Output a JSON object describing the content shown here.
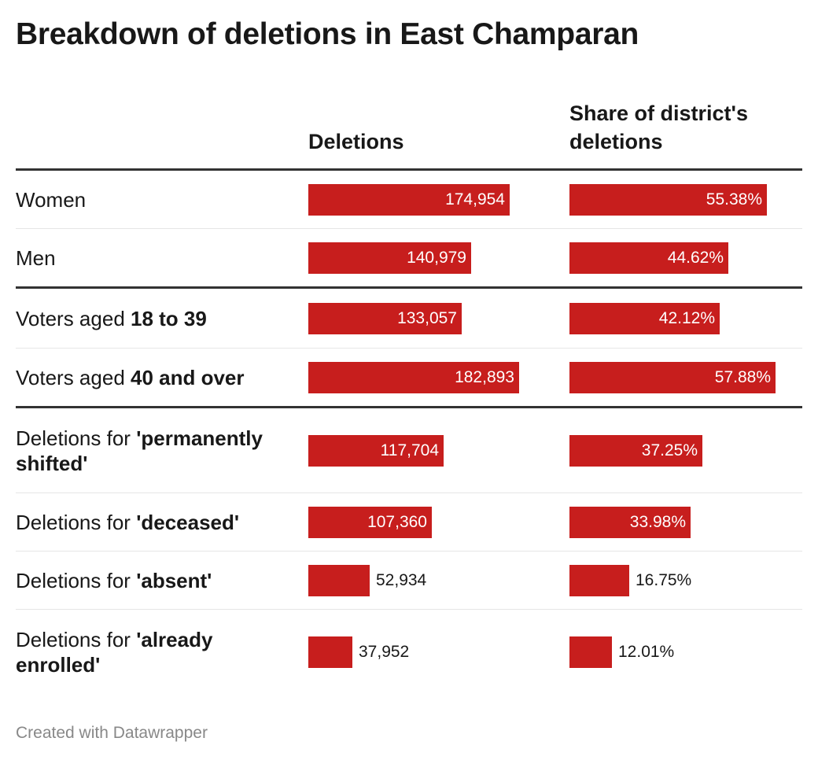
{
  "title": "Breakdown of deletions in East Champaran",
  "footer": "Created with Datawrapper",
  "colors": {
    "bar": "#c71e1d",
    "rule": "#333333",
    "separator": "#e6e6e6"
  },
  "chart_data": {
    "type": "table",
    "title": "Breakdown of deletions in East Champaran",
    "columns": [
      "Deletions",
      "Share of district's deletions"
    ],
    "rows": [
      {
        "prefix": "Women",
        "bold": "",
        "suffix": "",
        "deletions": 174954,
        "deletions_label": "174,954",
        "share": 55.38,
        "share_label": "55.38%"
      },
      {
        "prefix": "Men",
        "bold": "",
        "suffix": "",
        "deletions": 140979,
        "deletions_label": "140,979",
        "share": 44.62,
        "share_label": "44.62%"
      },
      {
        "prefix": "Voters aged ",
        "bold": "18 to 39",
        "suffix": "",
        "deletions": 133057,
        "deletions_label": "133,057",
        "share": 42.12,
        "share_label": "42.12%"
      },
      {
        "prefix": "Voters aged ",
        "bold": "40 and over",
        "suffix": "",
        "deletions": 182893,
        "deletions_label": "182,893",
        "share": 57.88,
        "share_label": "57.88%"
      },
      {
        "prefix": "Deletions for ",
        "bold": "'permanently shifted'",
        "suffix": "",
        "deletions": 117704,
        "deletions_label": "117,704",
        "share": 37.25,
        "share_label": "37.25%"
      },
      {
        "prefix": "Deletions for ",
        "bold": "'deceased'",
        "suffix": "",
        "deletions": 107360,
        "deletions_label": "107,360",
        "share": 33.98,
        "share_label": "33.98%"
      },
      {
        "prefix": "Deletions for ",
        "bold": "'absent'",
        "suffix": "",
        "deletions": 52934,
        "deletions_label": "52,934",
        "share": 16.75,
        "share_label": "16.75%"
      },
      {
        "prefix": "Deletions for ",
        "bold": "'already enrolled'",
        "suffix": "",
        "deletions": 37952,
        "deletions_label": "37,952",
        "share": 12.01,
        "share_label": "12.01%"
      }
    ],
    "deletions_max": 182893,
    "share_max": 57.88
  }
}
